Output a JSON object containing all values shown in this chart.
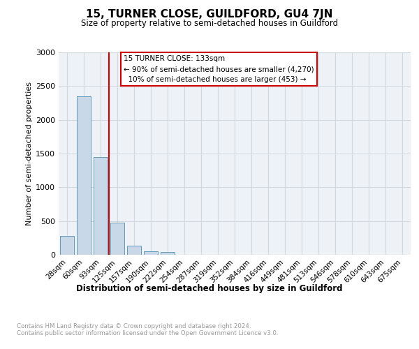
{
  "title": "15, TURNER CLOSE, GUILDFORD, GU4 7JN",
  "subtitle": "Size of property relative to semi-detached houses in Guildford",
  "xlabel_bottom": "Distribution of semi-detached houses by size in Guildford",
  "ylabel": "Number of semi-detached properties",
  "footnote": "Contains HM Land Registry data © Crown copyright and database right 2024.\nContains public sector information licensed under the Open Government Licence v3.0.",
  "bar_labels": [
    "28sqm",
    "60sqm",
    "93sqm",
    "125sqm",
    "157sqm",
    "190sqm",
    "222sqm",
    "254sqm",
    "287sqm",
    "319sqm",
    "352sqm",
    "384sqm",
    "416sqm",
    "449sqm",
    "481sqm",
    "513sqm",
    "546sqm",
    "578sqm",
    "610sqm",
    "643sqm",
    "675sqm"
  ],
  "bar_values": [
    280,
    2350,
    1450,
    475,
    130,
    55,
    45,
    0,
    0,
    0,
    0,
    0,
    0,
    0,
    0,
    0,
    0,
    0,
    0,
    0,
    0
  ],
  "bar_color": "#c8d8e8",
  "bar_edgecolor": "#5090b0",
  "vline_color": "#cc0000",
  "vline_x": 2.5,
  "ylim": [
    0,
    3000
  ],
  "yticks": [
    0,
    500,
    1000,
    1500,
    2000,
    2500,
    3000
  ],
  "annotation_text": "15 TURNER CLOSE: 133sqm\n← 90% of semi-detached houses are smaller (4,270)\n  10% of semi-detached houses are larger (453) →",
  "annotation_box_color": "#cc0000",
  "grid_color": "#d0d8e0",
  "background_color": "#eef2f7"
}
